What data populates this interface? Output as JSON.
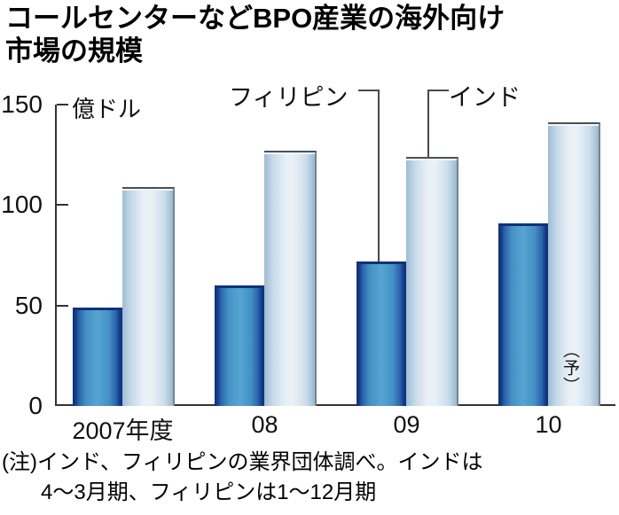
{
  "title_lines": [
    "コールセンターなどBPO産業の海外向け",
    "市場の規模"
  ],
  "chart_data": {
    "type": "bar",
    "title": "コールセンターなどBPO産業の海外向け市場の規模",
    "categories": [
      "2007年度",
      "08",
      "09",
      "10"
    ],
    "series": [
      {
        "name": "フィリピン",
        "values": [
          49,
          60,
          72,
          91
        ],
        "bar_color_center": "#56a5d3",
        "bar_color_edge": "#133a86"
      },
      {
        "name": "インド",
        "values": [
          109,
          127,
          124,
          141
        ],
        "bar_color_center": "#e9f0f6",
        "bar_color_edge": "#9dbdd4"
      }
    ],
    "unit_label": "億ドル",
    "y_ticks": [
      0,
      50,
      100,
      150
    ],
    "ylim": [
      0,
      150
    ],
    "grid": false,
    "legend_position": "above-plot-with-connector-lines",
    "forecast_label": "（予）",
    "forecast_series": "インド",
    "forecast_category": "10"
  },
  "note_lines": [
    "(注)インド、フィリピンの業界団体調べ。インドは",
    "4〜3月期、フィリピンは1〜12月期"
  ]
}
